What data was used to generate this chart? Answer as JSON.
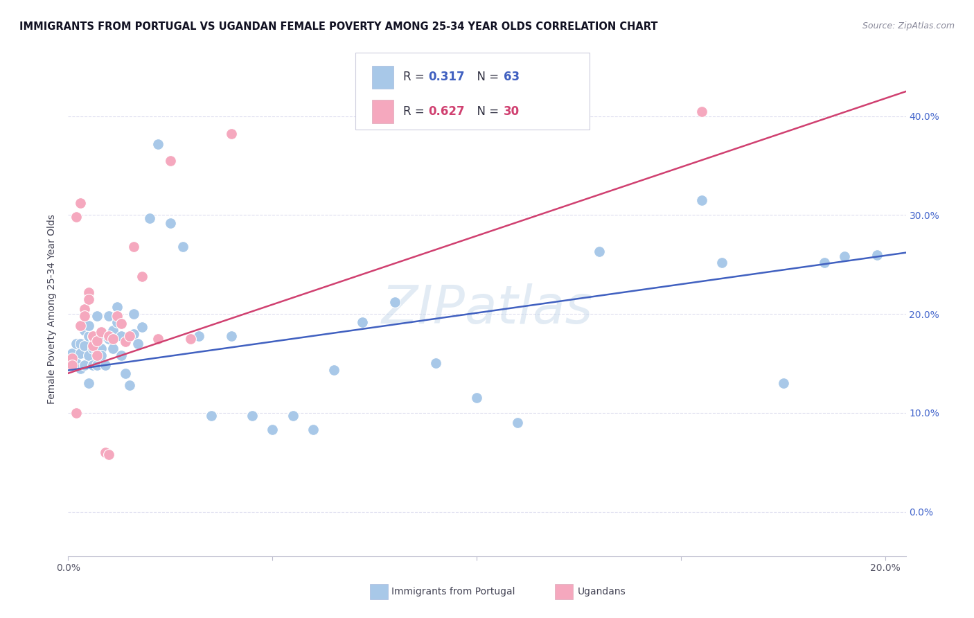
{
  "title": "IMMIGRANTS FROM PORTUGAL VS UGANDAN FEMALE POVERTY AMONG 25-34 YEAR OLDS CORRELATION CHART",
  "source": "Source: ZipAtlas.com",
  "ylabel": "Female Poverty Among 25-34 Year Olds",
  "xlim": [
    0.0,
    0.205
  ],
  "ylim": [
    -0.045,
    0.455
  ],
  "blue_R": 0.317,
  "blue_N": 63,
  "pink_R": 0.627,
  "pink_N": 30,
  "blue_color": "#a8c8e8",
  "pink_color": "#f5a8be",
  "blue_line_color": "#4060c0",
  "pink_line_color": "#d04070",
  "text_color": "#333355",
  "background_color": "#ffffff",
  "grid_color": "#ddddee",
  "blue_x": [
    0.001,
    0.001,
    0.002,
    0.002,
    0.003,
    0.003,
    0.003,
    0.004,
    0.004,
    0.004,
    0.005,
    0.005,
    0.005,
    0.005,
    0.006,
    0.006,
    0.006,
    0.007,
    0.007,
    0.007,
    0.008,
    0.008,
    0.008,
    0.009,
    0.009,
    0.01,
    0.01,
    0.011,
    0.011,
    0.012,
    0.012,
    0.013,
    0.013,
    0.014,
    0.015,
    0.016,
    0.016,
    0.017,
    0.018,
    0.02,
    0.022,
    0.025,
    0.028,
    0.032,
    0.035,
    0.04,
    0.045,
    0.05,
    0.055,
    0.06,
    0.065,
    0.072,
    0.08,
    0.09,
    0.1,
    0.11,
    0.13,
    0.155,
    0.16,
    0.175,
    0.185,
    0.19,
    0.198
  ],
  "blue_y": [
    0.155,
    0.16,
    0.17,
    0.15,
    0.17,
    0.16,
    0.145,
    0.183,
    0.168,
    0.148,
    0.13,
    0.178,
    0.188,
    0.158,
    0.177,
    0.165,
    0.148,
    0.198,
    0.162,
    0.148,
    0.178,
    0.165,
    0.158,
    0.178,
    0.148,
    0.198,
    0.175,
    0.183,
    0.165,
    0.207,
    0.192,
    0.178,
    0.158,
    0.14,
    0.128,
    0.2,
    0.18,
    0.17,
    0.187,
    0.297,
    0.372,
    0.292,
    0.268,
    0.178,
    0.097,
    0.178,
    0.097,
    0.083,
    0.097,
    0.083,
    0.143,
    0.192,
    0.212,
    0.15,
    0.115,
    0.09,
    0.263,
    0.315,
    0.252,
    0.13,
    0.252,
    0.258,
    0.26
  ],
  "pink_x": [
    0.001,
    0.001,
    0.002,
    0.002,
    0.003,
    0.003,
    0.004,
    0.004,
    0.005,
    0.005,
    0.006,
    0.006,
    0.007,
    0.007,
    0.008,
    0.009,
    0.01,
    0.01,
    0.011,
    0.012,
    0.013,
    0.014,
    0.015,
    0.016,
    0.018,
    0.022,
    0.025,
    0.03,
    0.04,
    0.155
  ],
  "pink_y": [
    0.155,
    0.148,
    0.298,
    0.1,
    0.312,
    0.188,
    0.205,
    0.198,
    0.222,
    0.215,
    0.178,
    0.168,
    0.173,
    0.158,
    0.182,
    0.06,
    0.058,
    0.178,
    0.175,
    0.198,
    0.19,
    0.172,
    0.178,
    0.268,
    0.238,
    0.175,
    0.355,
    0.175,
    0.382,
    0.405
  ],
  "blue_line_x": [
    0.0,
    0.205
  ],
  "blue_line_y": [
    0.143,
    0.262
  ],
  "pink_line_x": [
    0.0,
    0.205
  ],
  "pink_line_y": [
    0.14,
    0.425
  ],
  "watermark": "ZIPatlas",
  "legend_label_blue": "Immigrants from Portugal",
  "legend_label_pink": "Ugandans",
  "ytick_positions": [
    0.0,
    0.1,
    0.2,
    0.3,
    0.4
  ],
  "ytick_labels": [
    "0.0%",
    "10.0%",
    "20.0%",
    "30.0%",
    "40.0%"
  ],
  "xtick_positions": [
    0.0,
    0.05,
    0.1,
    0.15,
    0.2
  ],
  "xtick_labels": [
    "0.0%",
    "",
    "",
    "",
    "20.0%"
  ]
}
